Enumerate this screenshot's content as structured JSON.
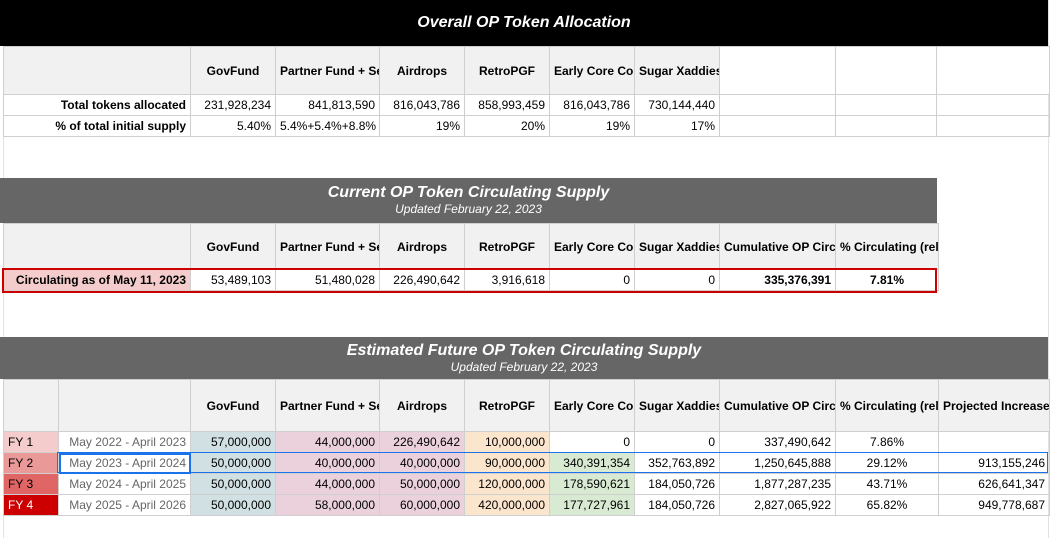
{
  "section1": {
    "title": "Overall OP Token Allocation",
    "headers": [
      "GovFund",
      "Partner Fund + Seed Fund + Unallocated",
      "Airdrops",
      "RetroPGF",
      "Early Core Contributors",
      "Sugar Xaddies"
    ],
    "rows": [
      {
        "label": "Total tokens allocated",
        "values": [
          "231,928,234",
          "841,813,590",
          "816,043,786",
          "858,993,459",
          "816,043,786",
          "730,144,440"
        ]
      },
      {
        "label": "% of total initial supply",
        "values": [
          "5.40%",
          "5.4%+5.4%+8.8%",
          "19%",
          "20%",
          "19%",
          "17%"
        ]
      }
    ]
  },
  "section2": {
    "title": "Current OP Token Circulating Supply",
    "subtitle": "Updated February 22, 2023",
    "headers": [
      "GovFund",
      "Partner Fund + Seed Fund + Unallocated",
      "Airdrops",
      "RetroPGF",
      "Early Core Contributors",
      "Sugar Xaddies",
      "Cumulative OP Circulating Supply",
      "% Circulating (relative to fully diluted supply)*"
    ],
    "row": {
      "label": "Circulating as of May 11, 2023",
      "values": [
        "53,489,103",
        "51,480,028",
        "226,490,642",
        "3,916,618",
        "0",
        "0",
        "335,376,391",
        "7.81%"
      ]
    }
  },
  "section3": {
    "title": "Estimated Future OP Token Circulating Supply",
    "subtitle": "Updated February 22, 2023",
    "headers": [
      "GovFund",
      "Partner Fund + Seed Fund + Unallocated",
      "Airdrops",
      "RetroPGF",
      "Early Core Contributors",
      "Sugar Xaddies",
      "Cumulative OP Circulating Supply",
      "% Circulating (relative to fully diluted supply)*",
      "Projected Increase in Circulating Supply"
    ],
    "rows": [
      {
        "fy": "FY 1",
        "range": "May 2022 - April 2023",
        "values": [
          "57,000,000",
          "44,000,000",
          "226,490,642",
          "10,000,000",
          "0",
          "0",
          "337,490,642",
          "7.86%",
          ""
        ]
      },
      {
        "fy": "FY 2",
        "range": "May 2023 - April 2024",
        "values": [
          "50,000,000",
          "40,000,000",
          "40,000,000",
          "90,000,000",
          "340,391,354",
          "352,763,892",
          "1,250,645,888",
          "29.12%",
          "913,155,246"
        ]
      },
      {
        "fy": "FY 3",
        "range": "May 2024 - April 2025",
        "values": [
          "50,000,000",
          "44,000,000",
          "50,000,000",
          "120,000,000",
          "178,590,621",
          "184,050,726",
          "1,877,287,235",
          "43.71%",
          "626,641,347"
        ]
      },
      {
        "fy": "FY 4",
        "range": "May 2025 - April 2026",
        "values": [
          "50,000,000",
          "58,000,000",
          "60,000,000",
          "420,000,000",
          "177,727,961",
          "184,050,726",
          "2,827,065,922",
          "65.82%",
          "949,778,687"
        ]
      }
    ]
  },
  "colors": {
    "banner1": "#000000",
    "banner2": "#666666",
    "fy1": "#f4cccc",
    "fy2": "#ea9999",
    "fy3": "#e06666",
    "fy4": "#cc0000",
    "highlight": "#cc0000",
    "selection": "#1a73e8"
  }
}
